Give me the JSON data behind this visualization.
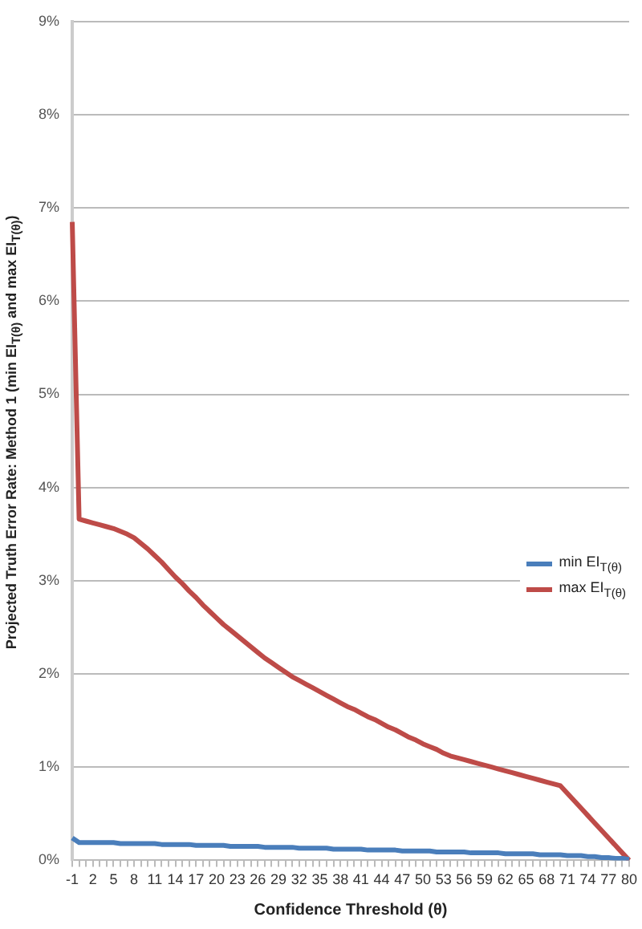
{
  "chart_data": {
    "type": "line",
    "xlabel": "Confidence Threshold (θ)",
    "ylabel": "Projected Truth Error Rate: Method 1 (min EI$_{T(θ)}$ and max EI$_{T(θ)}$)",
    "categories": [
      "-1",
      null,
      null,
      "2",
      null,
      null,
      "5",
      null,
      null,
      "8",
      null,
      null,
      "11",
      null,
      null,
      "14",
      null,
      null,
      "17",
      null,
      null,
      "20",
      null,
      null,
      "23",
      null,
      null,
      "26",
      null,
      null,
      "29",
      null,
      null,
      "32",
      null,
      null,
      "35",
      null,
      null,
      "38",
      null,
      null,
      "41",
      null,
      null,
      "44",
      null,
      null,
      "47",
      null,
      null,
      "50",
      null,
      null,
      "53",
      null,
      null,
      "56",
      null,
      null,
      "59",
      null,
      null,
      "62",
      null,
      null,
      "65",
      null,
      null,
      "68",
      null,
      null,
      "71",
      null,
      null,
      "74",
      null,
      null,
      "77",
      null,
      null,
      "80"
    ],
    "series": [
      {
        "name": "min EI$_{T(θ)}$",
        "color": "#4a7ebb",
        "values": [
          0.24,
          0.19,
          0.19,
          0.19,
          0.19,
          0.19,
          0.19,
          0.18,
          0.18,
          0.18,
          0.18,
          0.18,
          0.18,
          0.17,
          0.17,
          0.17,
          0.17,
          0.17,
          0.16,
          0.16,
          0.16,
          0.16,
          0.16,
          0.15,
          0.15,
          0.15,
          0.15,
          0.15,
          0.14,
          0.14,
          0.14,
          0.14,
          0.14,
          0.13,
          0.13,
          0.13,
          0.13,
          0.13,
          0.12,
          0.12,
          0.12,
          0.12,
          0.12,
          0.11,
          0.11,
          0.11,
          0.11,
          0.11,
          0.1,
          0.1,
          0.1,
          0.1,
          0.1,
          0.09,
          0.09,
          0.09,
          0.09,
          0.09,
          0.08,
          0.08,
          0.08,
          0.08,
          0.08,
          0.07,
          0.07,
          0.07,
          0.07,
          0.07,
          0.06,
          0.06,
          0.06,
          0.06,
          0.05,
          0.05,
          0.05,
          0.04,
          0.04,
          0.03,
          0.03,
          0.02,
          0.02,
          0.01
        ]
      },
      {
        "name": "max EI$_{T(θ)}$",
        "color": "#be4b48",
        "values": [
          6.85,
          3.66,
          3.64,
          3.62,
          3.6,
          3.58,
          3.56,
          3.53,
          3.5,
          3.46,
          3.4,
          3.34,
          3.27,
          3.2,
          3.12,
          3.04,
          2.97,
          2.89,
          2.82,
          2.74,
          2.67,
          2.6,
          2.53,
          2.47,
          2.41,
          2.35,
          2.29,
          2.23,
          2.17,
          2.12,
          2.07,
          2.02,
          1.97,
          1.93,
          1.89,
          1.85,
          1.81,
          1.77,
          1.73,
          1.69,
          1.65,
          1.62,
          1.58,
          1.54,
          1.51,
          1.47,
          1.43,
          1.4,
          1.36,
          1.32,
          1.29,
          1.25,
          1.22,
          1.19,
          1.15,
          1.12,
          1.1,
          1.08,
          1.06,
          1.04,
          1.02,
          1.0,
          0.98,
          0.96,
          0.94,
          0.92,
          0.9,
          0.88,
          0.86,
          0.84,
          0.82,
          0.8,
          0.72,
          0.64,
          0.56,
          0.48,
          0.4,
          0.32,
          0.24,
          0.16,
          0.08,
          0.0
        ]
      }
    ],
    "ylim": [
      0,
      9
    ],
    "yticks": [
      {
        "value": 0,
        "label": "0%"
      },
      {
        "value": 1,
        "label": "1%"
      },
      {
        "value": 2,
        "label": "2%"
      },
      {
        "value": 3,
        "label": "3%"
      },
      {
        "value": 4,
        "label": "4%"
      },
      {
        "value": 5,
        "label": "5%"
      },
      {
        "value": 6,
        "label": "6%"
      },
      {
        "value": 7,
        "label": "7%"
      },
      {
        "value": 8,
        "label": "8%"
      },
      {
        "value": 9,
        "label": "9%"
      }
    ],
    "grid": "y",
    "legend": "right",
    "marker": "none",
    "line_style": "solid"
  }
}
